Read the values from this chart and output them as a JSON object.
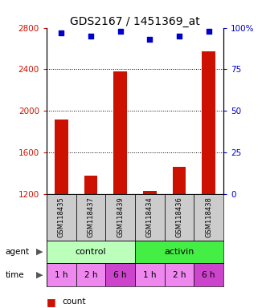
{
  "title": "GDS2167 / 1451369_at",
  "samples": [
    "GSM118435",
    "GSM118437",
    "GSM118439",
    "GSM118434",
    "GSM118436",
    "GSM118438"
  ],
  "counts": [
    1920,
    1380,
    2380,
    1230,
    1460,
    2570
  ],
  "percentiles": [
    97,
    95,
    98,
    93,
    95,
    98
  ],
  "ylim_left": [
    1200,
    2800
  ],
  "ylim_right": [
    0,
    100
  ],
  "yticks_left": [
    1200,
    1600,
    2000,
    2400,
    2800
  ],
  "yticks_right": [
    0,
    25,
    50,
    75,
    100
  ],
  "bar_color": "#cc1100",
  "dot_color": "#0000cc",
  "agent_labels": [
    "control",
    "activin"
  ],
  "agent_color_light": "#bbffbb",
  "agent_color_dark": "#44ee44",
  "time_labels": [
    "1 h",
    "2 h",
    "6 h",
    "1 h",
    "2 h",
    "6 h"
  ],
  "time_color_light": "#ee88ee",
  "time_color_dark": "#cc44cc",
  "time_bg": [
    "light",
    "light",
    "dark",
    "light",
    "light",
    "dark"
  ],
  "tick_label_color_left": "#cc1100",
  "tick_label_color_right": "#0000cc",
  "bar_width": 0.45,
  "sample_box_color": "#cccccc",
  "grid_dotted_ticks": [
    1600,
    2000,
    2400
  ]
}
